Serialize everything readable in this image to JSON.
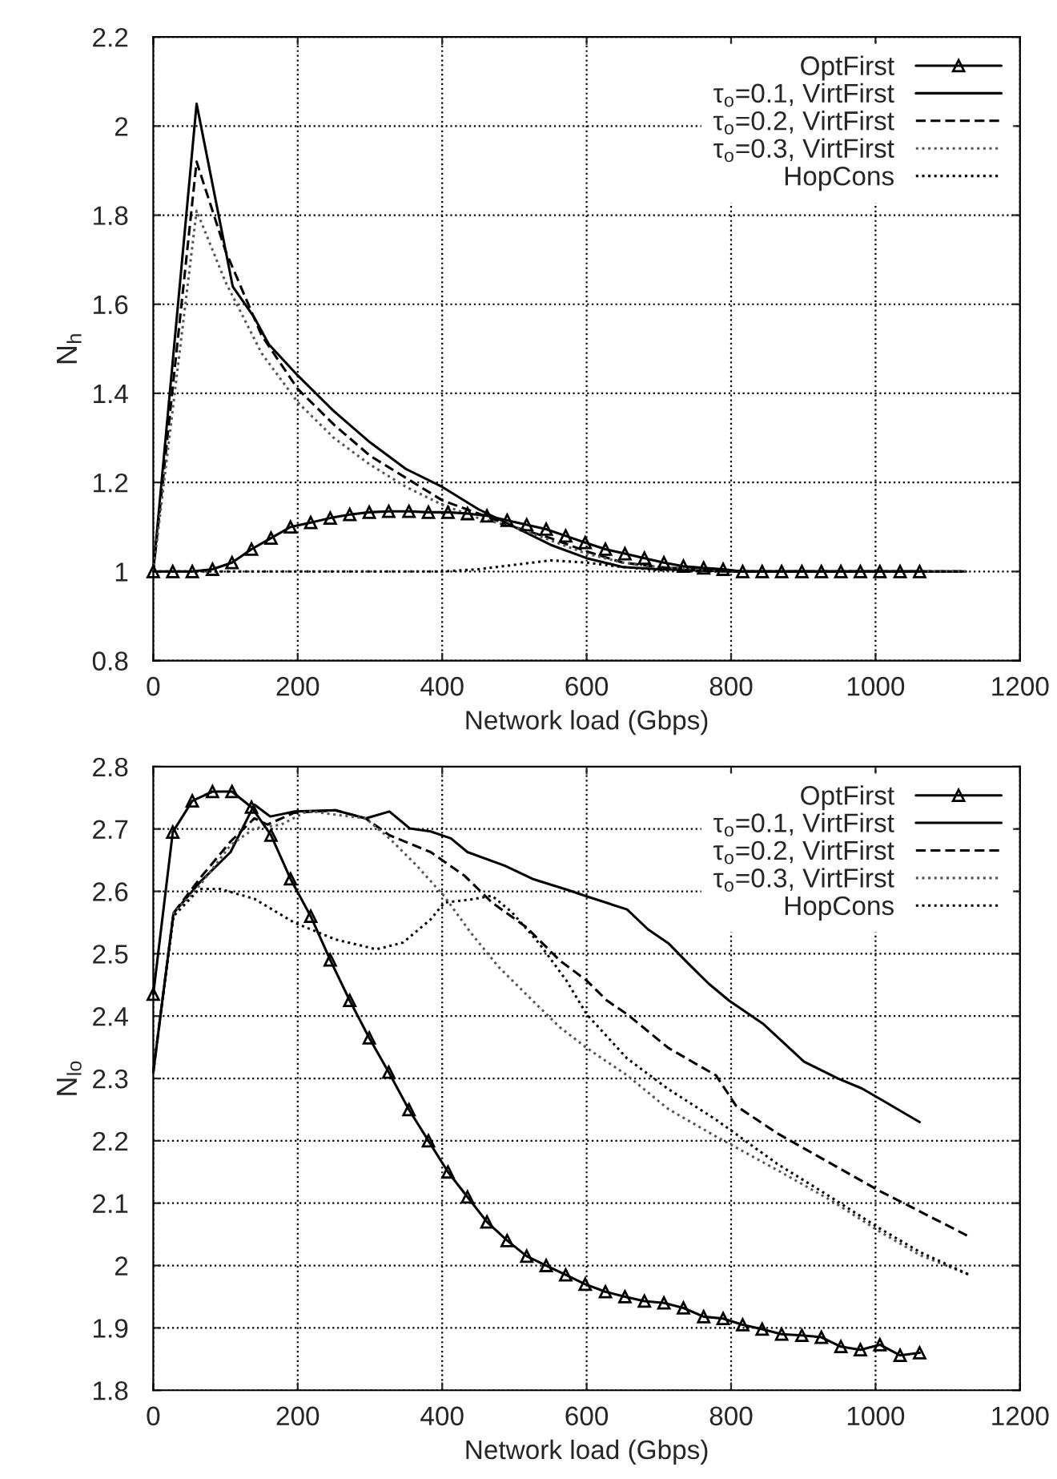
{
  "chart_data": [
    {
      "type": "line",
      "xlabel": "Network load (Gbps)",
      "ylabel": "N$_{h}$",
      "xlim": [
        0,
        1200
      ],
      "ylim": [
        0.8,
        2.2
      ],
      "xticks": [
        0,
        200,
        400,
        600,
        800,
        1000,
        1200
      ],
      "yticks": [
        {
          "value": 0.8,
          "label": "0.8"
        },
        {
          "value": 1,
          "label": "1"
        },
        {
          "value": 1.2,
          "label": "1.2"
        },
        {
          "value": 1.4,
          "label": "1.4"
        },
        {
          "value": 1.6,
          "label": "1.6"
        },
        {
          "value": 1.8,
          "label": "1.8"
        },
        {
          "value": 2,
          "label": "2"
        },
        {
          "value": 2.2,
          "label": "2.2"
        }
      ],
      "grid": true,
      "legend": "top right",
      "series": [
        {
          "name": "OptFirst",
          "color": "#000000",
          "marker": "triangle",
          "line_style": "solid",
          "x": [
            0,
            27,
            54,
            82,
            109,
            136,
            163,
            190,
            218,
            245,
            272,
            299,
            326,
            354,
            381,
            408,
            435,
            462,
            490,
            517,
            544,
            571,
            598,
            626,
            653,
            680,
            707,
            734,
            762,
            789,
            816,
            843,
            870,
            898,
            925,
            952,
            979,
            1006,
            1034,
            1061
          ],
          "values": [
            1,
            1,
            1,
            1.005,
            1.02,
            1.05,
            1.075,
            1.1,
            1.11,
            1.12,
            1.128,
            1.133,
            1.135,
            1.135,
            1.133,
            1.133,
            1.13,
            1.125,
            1.115,
            1.105,
            1.095,
            1.08,
            1.065,
            1.05,
            1.04,
            1.03,
            1.02,
            1.012,
            1.008,
            1.005,
            1,
            1,
            1,
            1,
            1,
            1,
            1,
            1,
            1,
            1
          ]
        },
        {
          "name": "τ$_{o}$=0.1, VirtFirst",
          "color": "#000000",
          "marker": "none",
          "line_style": "solid",
          "x": [
            0,
            60,
            110,
            140,
            160,
            200,
            250,
            300,
            350,
            400,
            450,
            500,
            550,
            600,
            650,
            700,
            800,
            1125
          ],
          "values": [
            1,
            2.05,
            1.64,
            1.57,
            1.51,
            1.44,
            1.36,
            1.29,
            1.23,
            1.19,
            1.14,
            1.1,
            1.06,
            1.03,
            1.01,
            1.005,
            1,
            1
          ]
        },
        {
          "name": "τ$_{o}$=0.2, VirtFirst",
          "color": "#000000",
          "marker": "none",
          "line_style": "dashed",
          "x": [
            0,
            60,
            100,
            150,
            200,
            250,
            300,
            350,
            400,
            450,
            500,
            550,
            600,
            650,
            700,
            800,
            1125
          ],
          "values": [
            1,
            1.92,
            1.72,
            1.53,
            1.41,
            1.33,
            1.26,
            1.21,
            1.16,
            1.13,
            1.1,
            1.075,
            1.045,
            1.02,
            1.01,
            1,
            1
          ]
        },
        {
          "name": "τ$_{o}$=0.3, VirtFirst",
          "color": "#555555",
          "marker": "none",
          "line_style": "dotted",
          "x": [
            0,
            60,
            100,
            150,
            200,
            250,
            300,
            350,
            400,
            450,
            500,
            550,
            600,
            650,
            700,
            800,
            1125
          ],
          "values": [
            1,
            1.81,
            1.65,
            1.49,
            1.38,
            1.3,
            1.24,
            1.19,
            1.15,
            1.12,
            1.1,
            1.07,
            1.04,
            1.02,
            1.01,
            1,
            1
          ]
        },
        {
          "name": "HopCons",
          "color": "#000000",
          "marker": "none",
          "line_style": "dotted",
          "x": [
            0,
            400,
            450,
            500,
            550,
            600,
            650,
            700,
            800,
            1125
          ],
          "values": [
            1,
            1,
            1.005,
            1.015,
            1.025,
            1.02,
            1.01,
            1.003,
            1,
            1
          ]
        }
      ]
    },
    {
      "type": "line",
      "xlabel": "Network load (Gbps)",
      "ylabel": "N$_{lo}$",
      "xlim": [
        0,
        1200
      ],
      "ylim": [
        1.8,
        2.8
      ],
      "xticks": [
        0,
        200,
        400,
        600,
        800,
        1000,
        1200
      ],
      "yticks": [
        {
          "value": 1.8,
          "label": "1.8"
        },
        {
          "value": 1.9,
          "label": "1.9"
        },
        {
          "value": 2,
          "label": "2"
        },
        {
          "value": 2.1,
          "label": "2.1"
        },
        {
          "value": 2.2,
          "label": "2.2"
        },
        {
          "value": 2.3,
          "label": "2.3"
        },
        {
          "value": 2.4,
          "label": "2.4"
        },
        {
          "value": 2.5,
          "label": "2.5"
        },
        {
          "value": 2.6,
          "label": "2.6"
        },
        {
          "value": 2.7,
          "label": "2.7"
        },
        {
          "value": 2.8,
          "label": "2.8"
        }
      ],
      "grid": true,
      "legend": "top right",
      "series": [
        {
          "name": "OptFirst",
          "color": "#000000",
          "marker": "triangle",
          "line_style": "solid",
          "x": [
            0,
            27,
            54,
            82,
            109,
            136,
            163,
            190,
            218,
            245,
            272,
            299,
            326,
            354,
            381,
            408,
            435,
            462,
            490,
            517,
            544,
            571,
            598,
            626,
            653,
            680,
            707,
            734,
            762,
            789,
            816,
            843,
            870,
            898,
            925,
            952,
            979,
            1006,
            1034,
            1061
          ],
          "values": [
            2.435,
            2.695,
            2.745,
            2.76,
            2.76,
            2.735,
            2.69,
            2.62,
            2.56,
            2.49,
            2.425,
            2.365,
            2.31,
            2.25,
            2.2,
            2.15,
            2.11,
            2.07,
            2.04,
            2.015,
            2.0,
            1.985,
            1.97,
            1.958,
            1.95,
            1.943,
            1.94,
            1.932,
            1.918,
            1.915,
            1.905,
            1.898,
            1.89,
            1.888,
            1.885,
            1.87,
            1.865,
            1.873,
            1.856,
            1.86
          ]
        },
        {
          "name": "τ$_{o}$=0.1, VirtFirst",
          "color": "#000000",
          "marker": "none",
          "line_style": "solid",
          "x": [
            0,
            28,
            64,
            107,
            140,
            162,
            195,
            252,
            294,
            327,
            355,
            384,
            412,
            435,
            487,
            525,
            572,
            600,
            656,
            685,
            713,
            741,
            769,
            797,
            845,
            901,
            948,
            981,
            1005,
            1061
          ],
          "values": [
            2.31,
            2.565,
            2.614,
            2.663,
            2.739,
            2.72,
            2.728,
            2.73,
            2.717,
            2.728,
            2.701,
            2.696,
            2.685,
            2.663,
            2.641,
            2.62,
            2.603,
            2.592,
            2.571,
            2.539,
            2.517,
            2.484,
            2.452,
            2.425,
            2.387,
            2.327,
            2.3,
            2.284,
            2.268,
            2.23
          ]
        },
        {
          "name": "τ$_{o}$=0.2, VirtFirst",
          "color": "#000000",
          "marker": "none",
          "line_style": "dashed",
          "x": [
            0,
            28,
            64,
            107,
            140,
            158,
            195,
            252,
            294,
            327,
            384,
            431,
            469,
            516,
            563,
            600,
            628,
            656,
            713,
            779,
            807,
            864,
            939,
            1005,
            1061,
            1132
          ],
          "values": [
            2.31,
            2.565,
            2.62,
            2.68,
            2.717,
            2.707,
            2.726,
            2.73,
            2.717,
            2.69,
            2.663,
            2.625,
            2.582,
            2.543,
            2.489,
            2.457,
            2.425,
            2.403,
            2.349,
            2.305,
            2.256,
            2.212,
            2.163,
            2.12,
            2.087,
            2.045
          ]
        },
        {
          "name": "τ$_{o}$=0.3, VirtFirst",
          "color": "#555555",
          "marker": "none",
          "line_style": "dotted",
          "x": [
            0,
            28,
            64,
            107,
            140,
            177,
            214,
            252,
            294,
            327,
            365,
            403,
            440,
            478,
            525,
            563,
            600,
            656,
            713,
            779,
            864,
            939,
            1005,
            1061,
            1132
          ],
          "values": [
            2.31,
            2.565,
            2.609,
            2.674,
            2.701,
            2.707,
            2.729,
            2.723,
            2.717,
            2.685,
            2.641,
            2.592,
            2.533,
            2.479,
            2.425,
            2.382,
            2.349,
            2.305,
            2.251,
            2.207,
            2.153,
            2.104,
            2.055,
            2.017,
            1.984
          ]
        },
        {
          "name": "HopCons",
          "color": "#000000",
          "marker": "none",
          "line_style": "dotted",
          "x": [
            0,
            28,
            64,
            92,
            140,
            195,
            252,
            309,
            346,
            384,
            403,
            440,
            469,
            497,
            534,
            572,
            600,
            656,
            713,
            779,
            864,
            939,
            1005,
            1061,
            1132
          ],
          "values": [
            2.31,
            2.56,
            2.604,
            2.604,
            2.588,
            2.55,
            2.523,
            2.507,
            2.518,
            2.555,
            2.582,
            2.587,
            2.593,
            2.566,
            2.517,
            2.457,
            2.403,
            2.332,
            2.283,
            2.234,
            2.163,
            2.109,
            2.06,
            2.022,
            1.984
          ]
        }
      ]
    }
  ]
}
